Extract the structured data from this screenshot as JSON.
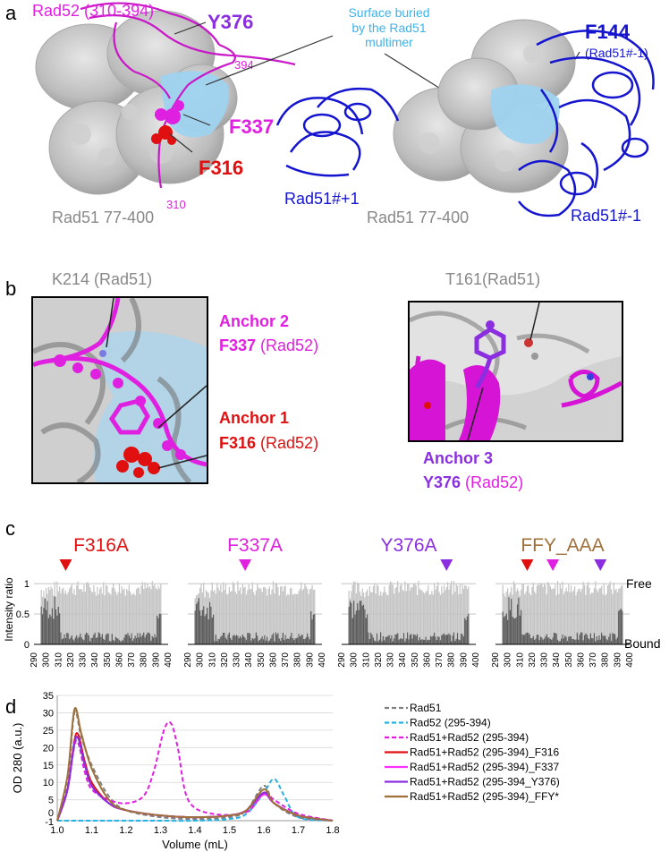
{
  "panels": {
    "a": {
      "letter": "a",
      "left": {
        "rad52_label": "Rad52 (310-394)",
        "y376": "Y376",
        "f337": "F337",
        "f316": "F316",
        "num_394": "394",
        "num_310": "310",
        "rad51_label": "Rad51 77-400"
      },
      "surface_note_lines": [
        "Surface buried",
        "by the Rad51",
        "multimer"
      ],
      "right": {
        "f144": "F144",
        "f144_sub": "(Rad51#-1)",
        "rad51_plus1": "Rad51#+1",
        "rad51_label": "Rad51 77-400",
        "rad51_minus1": "Rad51#-1"
      }
    },
    "b": {
      "letter": "b",
      "k214": "K214 (Rad51)",
      "anchor2": "Anchor 2",
      "f337": "F337",
      "f337_suffix": " (Rad52)",
      "anchor1": "Anchor 1",
      "f316": "F316",
      "f316_suffix": " (Rad52)",
      "t161": "T161(Rad51)",
      "anchor3": "Anchor 3",
      "y376": "Y376",
      "y376_suffix": " (Rad52)"
    },
    "c": {
      "letter": "c",
      "ylabel": "Intensity ratio",
      "free": "Free",
      "bound": "Bound",
      "yticks": [
        "0",
        "0.5",
        "1"
      ],
      "xticks": [
        "290",
        "300",
        "310",
        "320",
        "330",
        "340",
        "350",
        "360",
        "370",
        "380",
        "390",
        "400"
      ],
      "mutants": [
        {
          "name": "F316A",
          "color": "#e01010",
          "markers": [
            316
          ],
          "marker_colors": [
            "#e01010"
          ]
        },
        {
          "name": "F337A",
          "color": "#e020e0",
          "markers": [
            337
          ],
          "marker_colors": [
            "#e020e0"
          ]
        },
        {
          "name": "Y376A",
          "color": "#8a2ee0",
          "markers": [
            376
          ],
          "marker_colors": [
            "#8a2ee0"
          ]
        },
        {
          "name": "FFY_AAA",
          "color": "#a0703a",
          "markers": [
            316,
            337,
            376
          ],
          "marker_colors": [
            "#e01010",
            "#e020e0",
            "#8a2ee0"
          ]
        }
      ]
    },
    "d": {
      "letter": "d",
      "ylabel": "OD 280 (a.u.)",
      "xlabel": "Volume (mL)",
      "yticks": [
        "35",
        "30",
        "25",
        "20",
        "15",
        "10",
        "5",
        "0",
        "-1"
      ],
      "xticks": [
        "1.0",
        "1.1",
        "1.2",
        "1.3",
        "1.4",
        "1.5",
        "1.6",
        "1.7",
        "1.8"
      ]
    }
  },
  "chart_data": {
    "type": "line",
    "title": "",
    "xlabel": "Volume (mL)",
    "ylabel": "OD 280 (a.u.)",
    "xlim": [
      1.0,
      1.8
    ],
    "ylim": [
      -1,
      35
    ],
    "yticks": [
      -1,
      0,
      5,
      10,
      15,
      20,
      25,
      30,
      35
    ],
    "xticks": [
      1.0,
      1.1,
      1.2,
      1.3,
      1.4,
      1.5,
      1.6,
      1.7,
      1.8
    ],
    "legend_position": "right",
    "series": [
      {
        "name": "Rad51",
        "color": "#808080",
        "dash": "dash",
        "x": [
          1.0,
          1.03,
          1.05,
          1.07,
          1.1,
          1.15,
          1.2,
          1.3,
          1.4,
          1.5,
          1.55,
          1.6,
          1.63,
          1.7,
          1.8
        ],
        "y": [
          -1,
          10,
          30,
          23,
          15,
          6,
          2,
          0,
          -0.5,
          0,
          2,
          9,
          4,
          0,
          -1
        ]
      },
      {
        "name": "Rad52 (295-394)",
        "color": "#2ab0e0",
        "dash": "dash",
        "x": [
          1.0,
          1.1,
          1.2,
          1.3,
          1.4,
          1.5,
          1.55,
          1.6,
          1.63,
          1.66,
          1.7,
          1.8
        ],
        "y": [
          -1,
          -1,
          -1,
          -1,
          -1,
          -0.5,
          1,
          7,
          11,
          6,
          0,
          -1
        ]
      },
      {
        "name": "Rad51+Rad52 (295-394)",
        "color": "#e020e0",
        "dash": "dash",
        "x": [
          1.0,
          1.03,
          1.055,
          1.08,
          1.1,
          1.15,
          1.2,
          1.25,
          1.28,
          1.31,
          1.33,
          1.35,
          1.38,
          1.45,
          1.55,
          1.6,
          1.63,
          1.7,
          1.8
        ],
        "y": [
          -1,
          8,
          22,
          13,
          8,
          5,
          4,
          6,
          13,
          25,
          27,
          20,
          5,
          1,
          1.5,
          7,
          5,
          1,
          -1
        ]
      },
      {
        "name": "Rad51+Rad52 (295-394)_F316",
        "color": "#e01010",
        "dash": "solid",
        "x": [
          1.0,
          1.03,
          1.055,
          1.08,
          1.1,
          1.15,
          1.2,
          1.3,
          1.4,
          1.5,
          1.55,
          1.6,
          1.63,
          1.7,
          1.8
        ],
        "y": [
          -1,
          8,
          24,
          16,
          10,
          4,
          2,
          0.5,
          0,
          0.5,
          2,
          7,
          4,
          0.5,
          -1
        ]
      },
      {
        "name": "Rad51+Rad52 (295-394)_F337",
        "color": "#ff30ff",
        "dash": "solid",
        "x": [
          1.0,
          1.03,
          1.055,
          1.08,
          1.1,
          1.15,
          1.2,
          1.3,
          1.4,
          1.5,
          1.55,
          1.6,
          1.63,
          1.7,
          1.8
        ],
        "y": [
          -1,
          8,
          23,
          15,
          9,
          4,
          2,
          0.5,
          0,
          0.5,
          2,
          6.5,
          4,
          0.5,
          -1
        ]
      },
      {
        "name": "Rad51+Rad52 (295-394_Y376)",
        "color": "#8a2ee0",
        "dash": "solid",
        "x": [
          1.0,
          1.03,
          1.055,
          1.08,
          1.1,
          1.15,
          1.2,
          1.3,
          1.4,
          1.5,
          1.55,
          1.6,
          1.63,
          1.7,
          1.8
        ],
        "y": [
          -1,
          8,
          23,
          15,
          9,
          4,
          2,
          0.5,
          0,
          0.5,
          2,
          7,
          4,
          0.5,
          -1
        ]
      },
      {
        "name": "Rad51+Rad52 (295-394)_FFY*",
        "color": "#a0703a",
        "dash": "solid",
        "x": [
          1.0,
          1.03,
          1.05,
          1.07,
          1.1,
          1.15,
          1.2,
          1.3,
          1.4,
          1.5,
          1.55,
          1.6,
          1.63,
          1.7,
          1.8
        ],
        "y": [
          -1,
          12,
          31,
          24,
          14,
          5,
          2,
          0.5,
          0,
          0.5,
          2,
          8,
          4,
          0.5,
          -1
        ]
      }
    ]
  }
}
